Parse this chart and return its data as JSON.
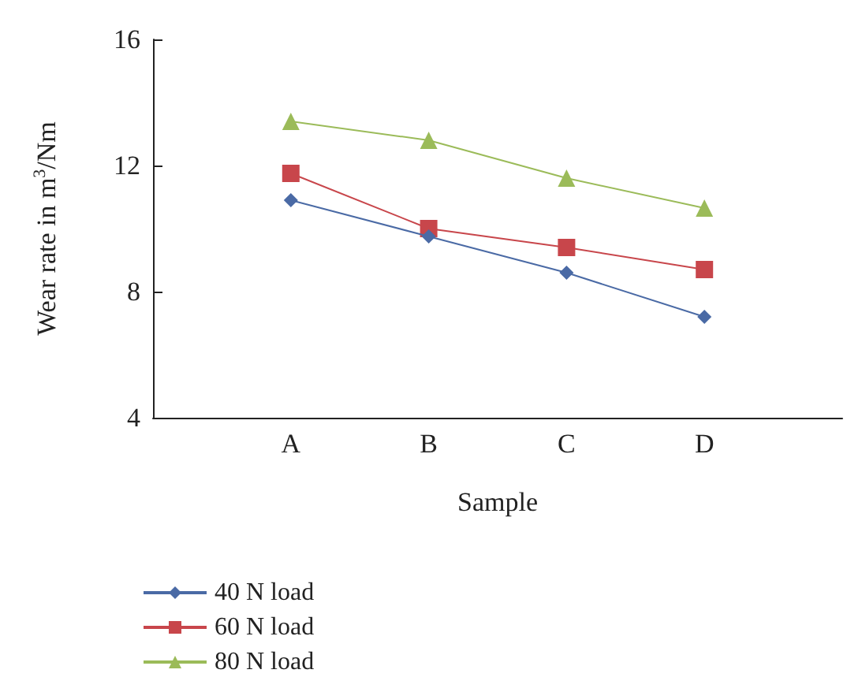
{
  "chart_data": {
    "type": "line",
    "xlabel": "Sample",
    "ylabel": "Wear rate in m$^{3}$/Nm",
    "categories": [
      null,
      "A",
      "B",
      "C",
      "D",
      null
    ],
    "ylim": [
      4,
      16
    ],
    "yticks": [
      4,
      8,
      12,
      16
    ],
    "grid": false,
    "legend": "bottom left",
    "series": [
      {
        "name": "40 N load",
        "color": "#4a6aa5",
        "marker": "diamond",
        "values": [
          null,
          10.9,
          9.75,
          8.6,
          7.2,
          null
        ]
      },
      {
        "name": "60 N load",
        "color": "#c8464b",
        "marker": "square",
        "values": [
          null,
          11.75,
          10.0,
          9.4,
          8.7,
          null
        ]
      },
      {
        "name": "80 N load",
        "color": "#9bbb59",
        "marker": "triangle",
        "values": [
          null,
          13.4,
          12.8,
          11.6,
          10.65,
          null
        ]
      }
    ]
  }
}
